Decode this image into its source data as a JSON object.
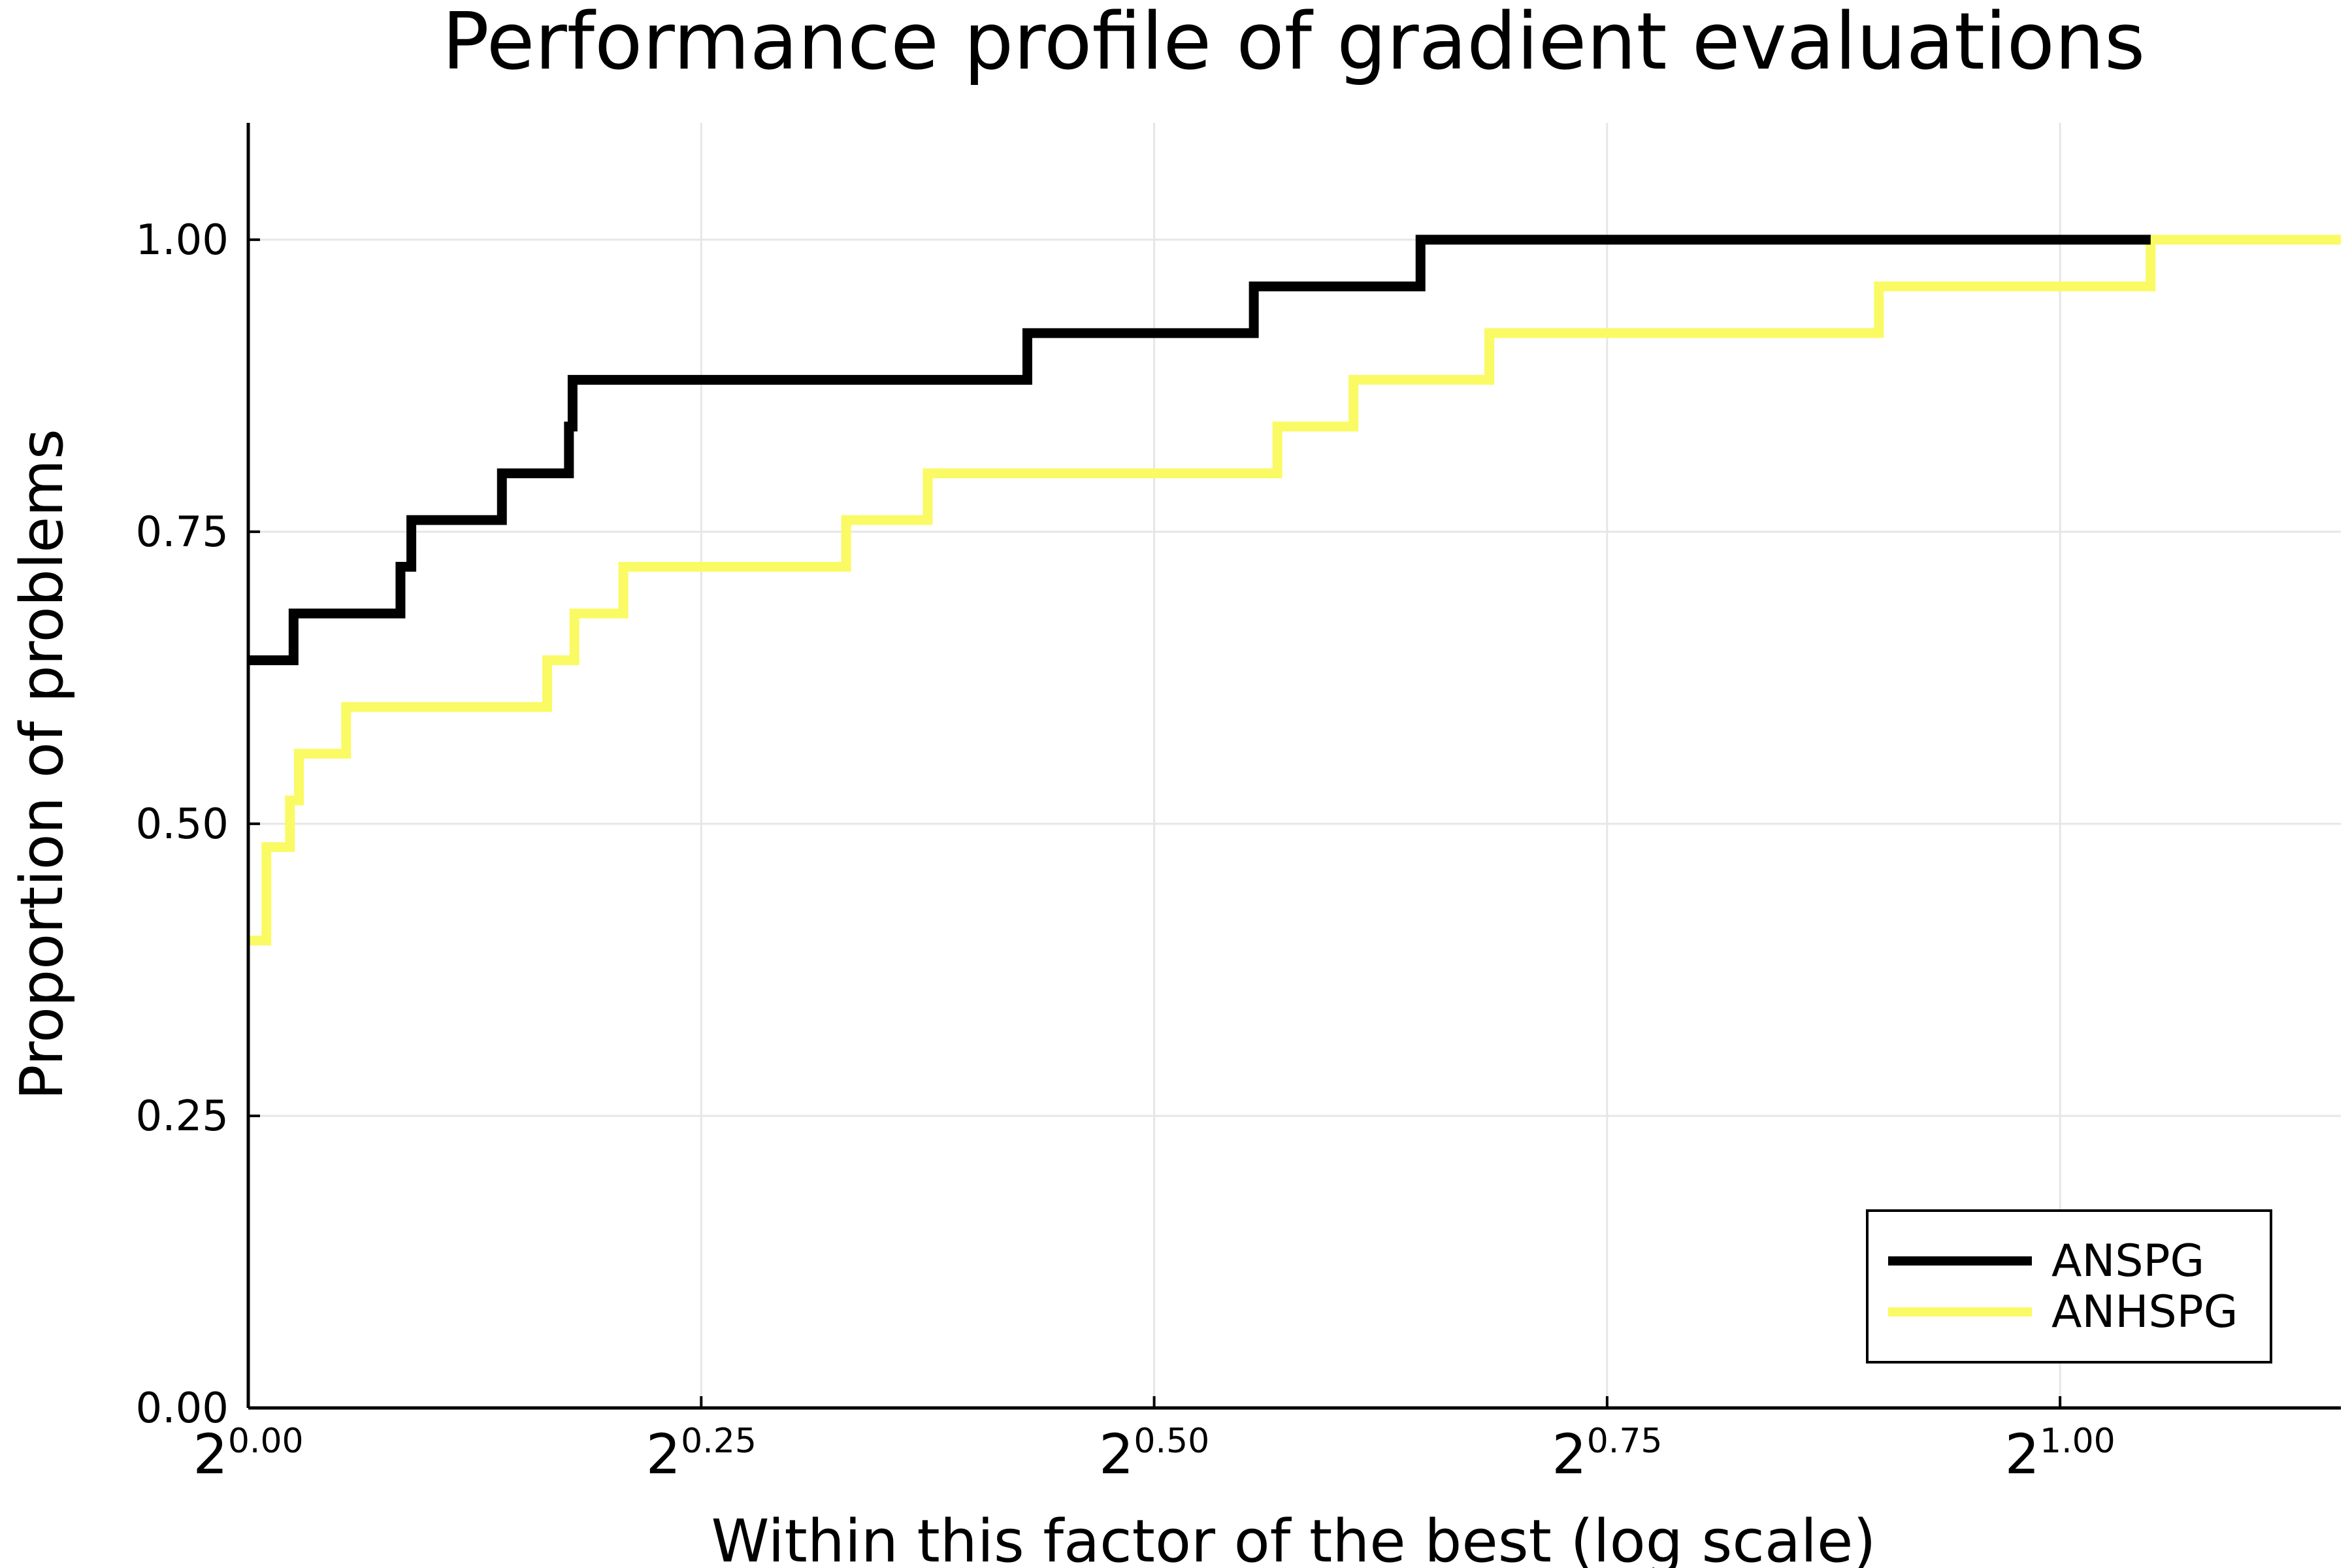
{
  "chart_data": {
    "type": "line",
    "step": true,
    "title": "Performance profile of gradient evaluations",
    "xlabel": "Within this factor of the best (log scale)",
    "ylabel": "Proportion of problems",
    "xscale": "log2",
    "xlim_exponent": [
      0,
      1.155
    ],
    "ylim": [
      0,
      1.1
    ],
    "grid": true,
    "legend_position": "bottom-right",
    "xticks": [
      {
        "base": "2",
        "exp": "0.00",
        "value": 0.0
      },
      {
        "base": "2",
        "exp": "0.25",
        "value": 0.25
      },
      {
        "base": "2",
        "exp": "0.50",
        "value": 0.5
      },
      {
        "base": "2",
        "exp": "0.75",
        "value": 0.75
      },
      {
        "base": "2",
        "exp": "1.00",
        "value": 1.0
      }
    ],
    "yticks": [
      {
        "label": "0.00",
        "value": 0.0
      },
      {
        "label": "0.25",
        "value": 0.25
      },
      {
        "label": "0.50",
        "value": 0.5
      },
      {
        "label": "0.75",
        "value": 0.75
      },
      {
        "label": "1.00",
        "value": 1.0
      }
    ],
    "series": [
      {
        "name": "ANSPG",
        "color": "#000000",
        "log2_x": [
          0.0,
          0.025,
          0.084,
          0.09,
          0.14,
          0.177,
          0.179,
          0.43,
          0.555,
          0.647,
          1.05
        ],
        "y": [
          0.64,
          0.68,
          0.72,
          0.76,
          0.8,
          0.84,
          0.88,
          0.92,
          0.96,
          1.0,
          1.0
        ]
      },
      {
        "name": "ANHSPG",
        "color": "#fafa64",
        "log2_x": [
          0.0,
          0.01,
          0.023,
          0.028,
          0.054,
          0.165,
          0.18,
          0.207,
          0.33,
          0.375,
          0.568,
          0.61,
          0.685,
          0.9,
          1.05,
          1.155
        ],
        "y": [
          0.4,
          0.48,
          0.52,
          0.56,
          0.6,
          0.64,
          0.68,
          0.72,
          0.76,
          0.8,
          0.84,
          0.88,
          0.92,
          0.96,
          1.0,
          1.0
        ]
      }
    ]
  }
}
